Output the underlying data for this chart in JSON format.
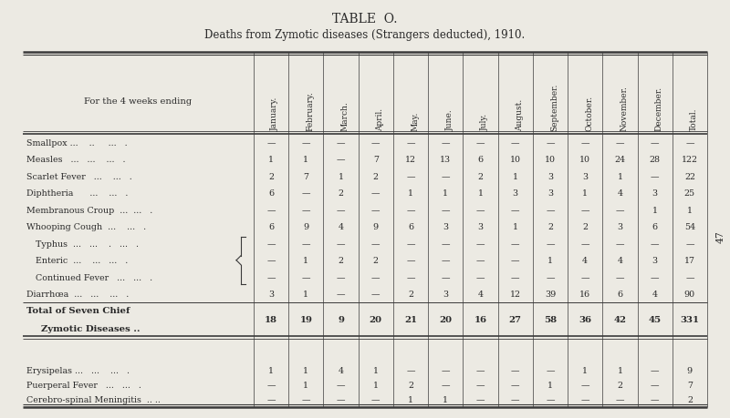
{
  "title": "TABLE  O.",
  "subtitle": "Deaths from Zymotic diseases (Strangers deducted), 1910.",
  "header_label": "For the 4 weeks ending",
  "columns": [
    "January.",
    "February.",
    "March.",
    "April.",
    "May.",
    "June.",
    "July.",
    "August.",
    "September.",
    "October.",
    "November.",
    "December.",
    "Total."
  ],
  "rows": [
    {
      "label": "Smallpox ...    ..     ...   .",
      "indent": false,
      "bold": false,
      "values": [
        "—",
        "—",
        "—",
        "—",
        "—",
        "—",
        "—",
        "—",
        "—",
        "—",
        "—",
        "—",
        "—"
      ]
    },
    {
      "label": "Measles   ...   ...    ...   .",
      "indent": false,
      "bold": false,
      "values": [
        "1",
        "1",
        "—",
        "7",
        "12",
        "13",
        "6",
        "10",
        "10",
        "10",
        "24",
        "28",
        "122"
      ]
    },
    {
      "label": "Scarlet Fever   ...    ...   .",
      "indent": false,
      "bold": false,
      "values": [
        "2",
        "7",
        "1",
        "2",
        "—",
        "—",
        "2",
        "1",
        "3",
        "3",
        "1",
        "—",
        "22"
      ]
    },
    {
      "label": "Diphtheria      ...    ...   .",
      "indent": false,
      "bold": false,
      "values": [
        "6",
        "—",
        "2",
        "—",
        "1",
        "1",
        "1",
        "3",
        "3",
        "1",
        "4",
        "3",
        "25"
      ]
    },
    {
      "label": "Membranous Croup  ...  ...   .",
      "indent": false,
      "bold": false,
      "values": [
        "—",
        "—",
        "—",
        "—",
        "—",
        "—",
        "—",
        "—",
        "—",
        "—",
        "—",
        "1",
        "1"
      ]
    },
    {
      "label": "Whooping Cough  ...    ...   .",
      "indent": false,
      "bold": false,
      "values": [
        "6",
        "9",
        "4",
        "9",
        "6",
        "3",
        "3",
        "1",
        "2",
        "2",
        "3",
        "6",
        "54"
      ]
    },
    {
      "label": "Typhus  ...   ...    .   ...   .",
      "indent": true,
      "bold": false,
      "values": [
        "—",
        "—",
        "—",
        "—",
        "—",
        "—",
        "—",
        "—",
        "—",
        "—",
        "—",
        "—",
        "—"
      ]
    },
    {
      "label": "Enteric  ...    ...   ...   .",
      "indent": true,
      "bold": false,
      "values": [
        "—",
        "1",
        "2",
        "2",
        "—",
        "—",
        "—",
        "—",
        "1",
        "4",
        "4",
        "3",
        "17"
      ]
    },
    {
      "label": "Continued Fever   ...   ...   .",
      "indent": true,
      "bold": false,
      "values": [
        "—",
        "—",
        "—",
        "—",
        "—",
        "—",
        "—",
        "—",
        "—",
        "—",
        "—",
        "—",
        "—"
      ]
    },
    {
      "label": "Diarrhœa  ...   ...    ...   .",
      "indent": false,
      "bold": false,
      "values": [
        "3",
        "1",
        "—",
        "—",
        "2",
        "3",
        "4",
        "12",
        "39",
        "16",
        "6",
        "4",
        "90"
      ]
    },
    {
      "label": "Total of Seven Chief\nZymotic Diseases ..",
      "indent": false,
      "bold": true,
      "values": [
        "18",
        "19",
        "9",
        "20",
        "21",
        "20",
        "16",
        "27",
        "58",
        "36",
        "42",
        "45",
        "331"
      ]
    },
    {
      "label": "Erysipelas ...   ...    ...   .",
      "indent": false,
      "bold": false,
      "values": [
        "1",
        "1",
        "4",
        "1",
        "—",
        "—",
        "—",
        "—",
        "—",
        "1",
        "1",
        "—",
        "9"
      ]
    },
    {
      "label": "Puerperal Fever   ...   ...   .",
      "indent": false,
      "bold": false,
      "values": [
        "—",
        "1",
        "—",
        "1",
        "2",
        "—",
        "—",
        "—",
        "1",
        "—",
        "2",
        "—",
        "7"
      ]
    },
    {
      "label": "Cerebro-spinal Meningitis  .. ..",
      "indent": false,
      "bold": false,
      "values": [
        "—",
        "—",
        "—",
        "—",
        "1",
        "1",
        "—",
        "—",
        "—",
        "—",
        "—",
        "—",
        "2"
      ]
    }
  ],
  "page_num": "47",
  "bg_color": "#eceae3",
  "text_color": "#2a2a2a",
  "line_color": "#3a3a3a",
  "font_size": 6.8,
  "header_font_size": 6.5,
  "title_font_size": 10.0,
  "subtitle_font_size": 8.5
}
